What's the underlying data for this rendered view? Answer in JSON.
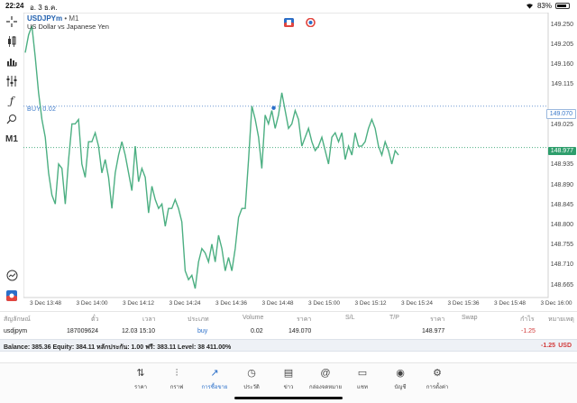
{
  "status": {
    "time": "22:24",
    "date": "อ. 3 ธ.ค.",
    "battery": "83%",
    "battery_level": 0.83
  },
  "toolbar": {
    "items": [
      {
        "name": "crosshair-icon",
        "glyph": "+"
      },
      {
        "name": "indicators-icon",
        "glyph": "⫶"
      },
      {
        "name": "chart-type-icon",
        "glyph": "▮"
      },
      {
        "name": "settings-sliders-icon",
        "glyph": "⫼"
      },
      {
        "name": "function-icon",
        "glyph": "ƒ"
      },
      {
        "name": "objects-icon",
        "glyph": "⌕"
      },
      {
        "name": "timeframe-button",
        "glyph": "M1"
      }
    ]
  },
  "chart": {
    "symbol": "USDJPYm",
    "timeframe": "• M1",
    "description": "US Dollar vs Japanese Yen",
    "buy_label": "BUY 0.02",
    "buy_price": "149.070",
    "bid_price": "148.977",
    "y_labels": [
      "149.250",
      "149.205",
      "149.160",
      "149.115",
      "149.025",
      "148.935",
      "148.890",
      "148.845",
      "148.800",
      "148.755",
      "148.710",
      "148.665"
    ],
    "x_labels": [
      "3 Dec 13:48",
      "3 Dec 14:00",
      "3 Dec 14:12",
      "3 Dec 14:24",
      "3 Dec 14:36",
      "3 Dec 14:48",
      "3 Dec 15:00",
      "3 Dec 15:12",
      "3 Dec 15:24",
      "3 Dec 15:36",
      "3 Dec 15:48",
      "3 Dec 16:00"
    ],
    "line_color": "#4caf82"
  },
  "chart_data": {
    "type": "line",
    "ylim": [
      148.64,
      149.28
    ],
    "y_ticks": [
      149.25,
      149.205,
      149.16,
      149.115,
      149.025,
      148.935,
      148.89,
      148.845,
      148.8,
      148.755,
      148.71,
      148.665
    ],
    "buy_level": 149.07,
    "bid_level": 148.977,
    "series": [
      {
        "values": [
          149.19,
          149.23,
          149.25,
          149.18,
          149.1,
          149.04,
          149.0,
          148.92,
          148.87,
          148.85,
          148.94,
          148.93,
          148.85,
          148.95,
          149.03,
          149.03,
          149.04,
          148.94,
          148.91,
          148.99,
          148.99,
          149.01,
          148.98,
          148.92,
          148.95,
          148.91,
          148.84,
          148.92,
          148.96,
          148.99,
          148.96,
          148.92,
          148.88,
          148.98,
          148.9,
          148.93,
          148.91,
          148.83,
          148.89,
          148.86,
          148.84,
          148.85,
          148.8,
          148.84,
          148.84,
          148.86,
          148.84,
          148.81,
          148.7,
          148.68,
          148.69,
          148.66,
          148.72,
          148.75,
          148.74,
          148.72,
          148.76,
          148.72,
          148.78,
          148.75,
          148.7,
          148.73,
          148.7,
          148.75,
          148.82,
          148.84,
          148.84,
          148.95,
          149.07,
          149.04,
          149.0,
          148.93,
          149.05,
          149.03,
          149.06,
          149.02,
          149.05,
          149.1,
          149.06,
          149.02,
          149.03,
          149.06,
          149.04,
          148.98,
          149.0,
          149.02,
          148.99,
          148.97,
          148.98,
          149.0,
          148.97,
          148.94,
          149.0,
          149.01,
          148.99,
          149.01,
          148.95,
          148.98,
          148.96,
          149.01,
          148.98,
          148.98,
          148.99,
          149.02,
          149.04,
          149.02,
          148.98,
          148.96,
          148.99,
          148.97,
          148.94,
          148.97,
          148.96
        ]
      }
    ]
  },
  "positions": {
    "headers": {
      "symbol": "สัญลักษณ์",
      "ticket": "ตั๋ว",
      "time": "เวลา",
      "type": "ประเภท",
      "volume": "Volume",
      "price": "ราคา",
      "sl": "S/L",
      "tp": "T/P",
      "cur_price": "ราคา",
      "swap": "Swap",
      "profit": "กำไร",
      "comment": "หมายเหตุ"
    },
    "row": {
      "symbol": "usdjpym",
      "ticket": "187009624",
      "time": "12.03 15:10",
      "type": "buy",
      "volume": "0.02",
      "price": "149.070",
      "cur_price": "148.977",
      "profit": "-1.25"
    }
  },
  "balance": {
    "text": "Balance: 385.36 Equity: 384.11 หลักประกัน: 1.00 ฟรี: 383.11 Level: 38 411.00%",
    "profit": "-1.25",
    "currency": "USD"
  },
  "tabs": [
    {
      "name": "tab-quotes",
      "label": "ราคา",
      "glyph": "⇅"
    },
    {
      "name": "tab-chart",
      "label": "กราฟ",
      "glyph": "⫶"
    },
    {
      "name": "tab-trade",
      "label": "การซื้อขาย",
      "glyph": "↗",
      "active": true
    },
    {
      "name": "tab-history",
      "label": "ประวัติ",
      "glyph": "◷"
    },
    {
      "name": "tab-news",
      "label": "ข่าว",
      "glyph": "▤"
    },
    {
      "name": "tab-mailbox",
      "label": "กล่องจดหมาย",
      "glyph": "@"
    },
    {
      "name": "tab-chat",
      "label": "แชท",
      "glyph": "▭"
    },
    {
      "name": "tab-account",
      "label": "บัญชี",
      "glyph": "◉"
    },
    {
      "name": "tab-settings",
      "label": "การตั้งค่า",
      "glyph": "⚙"
    }
  ]
}
